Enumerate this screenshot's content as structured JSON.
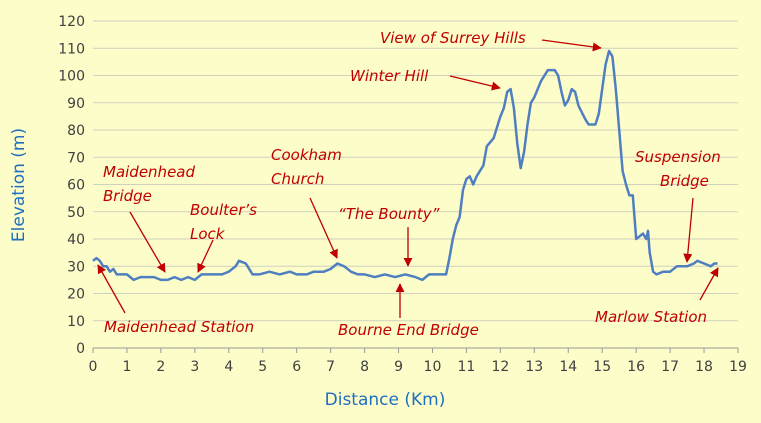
{
  "chart_data": {
    "type": "line",
    "x_label": "Distance (Km)",
    "y_label": "Elevation (m)",
    "x": [
      0,
      0.1,
      0.2,
      0.3,
      0.4,
      0.5,
      0.6,
      0.7,
      0.8,
      1.0,
      1.2,
      1.4,
      1.6,
      1.8,
      2.0,
      2.2,
      2.4,
      2.6,
      2.8,
      3.0,
      3.2,
      3.5,
      3.8,
      4.0,
      4.2,
      4.3,
      4.5,
      4.6,
      4.7,
      4.9,
      5.2,
      5.5,
      5.8,
      6.0,
      6.3,
      6.5,
      6.8,
      7.0,
      7.2,
      7.4,
      7.6,
      7.8,
      8.0,
      8.3,
      8.6,
      8.9,
      9.2,
      9.5,
      9.7,
      9.9,
      10.2,
      10.4,
      10.5,
      10.6,
      10.7,
      10.8,
      10.9,
      11.0,
      11.1,
      11.2,
      11.3,
      11.5,
      11.6,
      11.8,
      12.0,
      12.1,
      12.2,
      12.3,
      12.4,
      12.5,
      12.6,
      12.7,
      12.8,
      12.9,
      13.0,
      13.2,
      13.4,
      13.6,
      13.7,
      13.8,
      13.9,
      14.0,
      14.1,
      14.2,
      14.3,
      14.5,
      14.6,
      14.8,
      14.9,
      15.0,
      15.1,
      15.2,
      15.3,
      15.4,
      15.5,
      15.6,
      15.7,
      15.8,
      15.9,
      16.0,
      16.1,
      16.2,
      16.3,
      16.35,
      16.4,
      16.5,
      16.6,
      16.8,
      17.0,
      17.2,
      17.5,
      17.7,
      17.8,
      18.0,
      18.2,
      18.3,
      18.4
    ],
    "values": [
      32,
      33,
      32,
      30,
      30,
      28,
      29,
      27,
      27,
      27,
      25,
      26,
      26,
      26,
      25,
      25,
      26,
      25,
      26,
      25,
      27,
      27,
      27,
      28,
      30,
      32,
      31,
      29,
      27,
      27,
      28,
      27,
      28,
      27,
      27,
      28,
      28,
      29,
      31,
      30,
      28,
      27,
      27,
      26,
      27,
      26,
      27,
      26,
      25,
      27,
      27,
      27,
      33,
      40,
      45,
      48,
      58,
      62,
      63,
      60,
      63,
      67,
      74,
      77,
      85,
      88,
      94,
      95,
      88,
      75,
      66,
      72,
      82,
      90,
      92,
      98,
      102,
      102,
      100,
      94,
      89,
      91,
      95,
      94,
      89,
      84,
      82,
      82,
      86,
      95,
      104,
      109,
      107,
      95,
      80,
      65,
      60,
      56,
      56,
      40,
      41,
      42,
      40,
      43,
      35,
      28,
      27,
      28,
      28,
      30,
      30,
      31,
      32,
      31,
      30,
      31,
      31
    ],
    "color": "#4f7fc0",
    "xlim": [
      0,
      19
    ],
    "xticks": [
      0,
      1,
      2,
      3,
      4,
      5,
      6,
      7,
      8,
      9,
      10,
      11,
      12,
      13,
      14,
      15,
      16,
      17,
      18,
      19
    ],
    "ylim": [
      0,
      120
    ],
    "yticks": [
      0,
      10,
      20,
      30,
      40,
      50,
      60,
      70,
      80,
      90,
      100,
      110,
      120
    ],
    "grid": true,
    "annotations": [
      {
        "lines": [
          "Maidenhead Station"
        ]
      },
      {
        "lines": [
          "Maidenhead",
          "Bridge"
        ]
      },
      {
        "lines": [
          "Boulter’s",
          "Lock"
        ]
      },
      {
        "lines": [
          "Cookham",
          "Church"
        ]
      },
      {
        "lines": [
          "“The Bounty”"
        ]
      },
      {
        "lines": [
          "Bourne End Bridge"
        ]
      },
      {
        "lines": [
          "Winter Hill"
        ]
      },
      {
        "lines": [
          "View of Surrey Hills"
        ]
      },
      {
        "lines": [
          "Suspension",
          "Bridge"
        ]
      },
      {
        "lines": [
          "Marlow Station"
        ]
      }
    ]
  }
}
